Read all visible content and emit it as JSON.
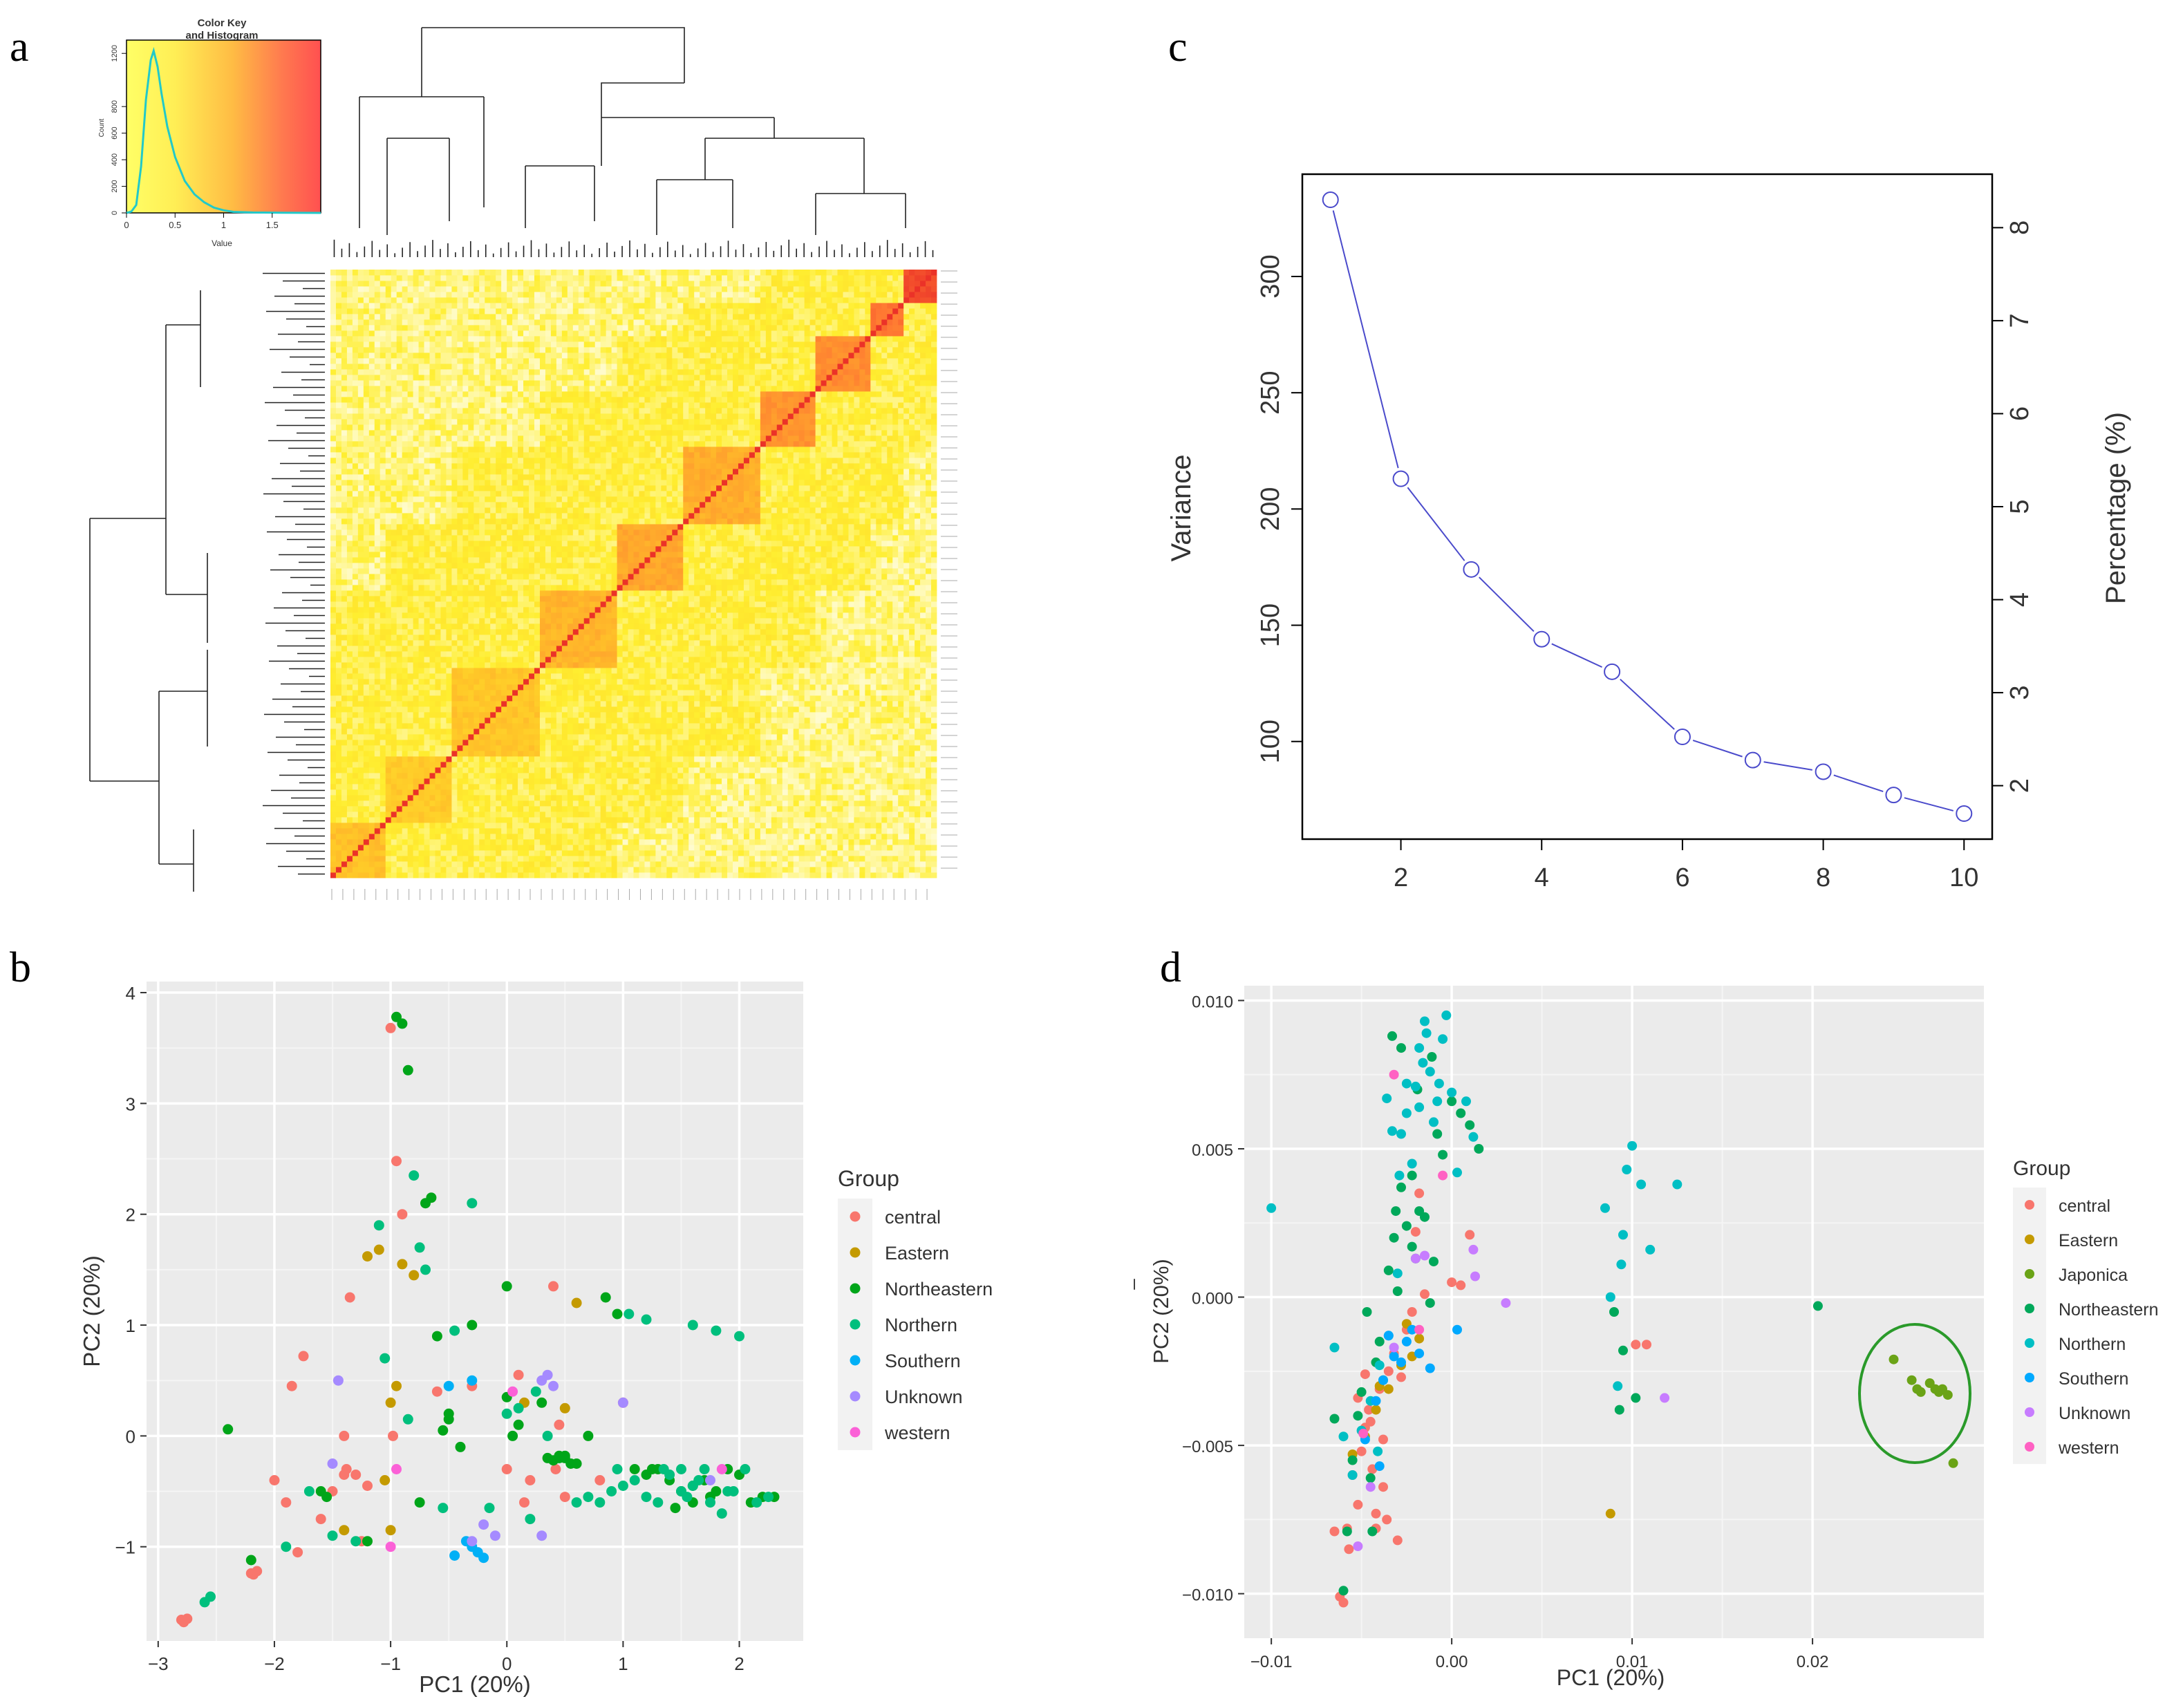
{
  "panel_labels": [
    "a",
    "b",
    "c",
    "d"
  ],
  "chart_data": [
    {
      "panel": "a",
      "type": "heatmap",
      "title": "",
      "description": "Kinship heatmap with row and column dendrograms",
      "color_scale": [
        "#fffde0",
        "#ffee30",
        "#ffb030",
        "#ff5050"
      ],
      "color_key": {
        "title": "Color Key\nand Histogram",
        "title_lines": [
          "Color Key",
          "and Histogram"
        ],
        "xlabel": "Value",
        "ylabel": "Count",
        "xticks": [
          "0",
          "0.5",
          "1",
          "1.5"
        ],
        "yticks": [
          "0",
          "200",
          "400",
          "600",
          "800",
          "1200"
        ],
        "xlim": [
          0,
          2.0
        ],
        "ylim": [
          0,
          1300
        ],
        "histogram": {
          "x": [
            0.0,
            0.05,
            0.1,
            0.15,
            0.2,
            0.25,
            0.28,
            0.32,
            0.36,
            0.42,
            0.5,
            0.6,
            0.7,
            0.8,
            0.9,
            1.0,
            1.1,
            1.3,
            1.6,
            2.0
          ],
          "y": [
            0,
            10,
            60,
            350,
            850,
            1150,
            1220,
            1100,
            900,
            650,
            420,
            240,
            140,
            80,
            40,
            20,
            8,
            3,
            1,
            0
          ]
        }
      },
      "block_values": [
        0.62,
        0.55,
        0.58,
        0.7,
        0.78,
        0.74,
        0.9,
        0.95,
        1.1,
        1.4
      ]
    },
    {
      "panel": "b",
      "type": "scatter",
      "title": "",
      "xlabel": "PC1 (20%)",
      "ylabel": "PC2 (20%)",
      "xlim": [
        -3.1,
        2.55
      ],
      "ylim": [
        -1.85,
        4.1
      ],
      "xticks": [
        -3,
        -2,
        -1,
        0,
        1,
        2
      ],
      "yticks": [
        -1,
        0,
        1,
        2,
        3,
        4
      ],
      "xtick_labels": [
        "−3",
        "−2",
        "−1",
        "0",
        "1",
        "2"
      ],
      "ytick_labels": [
        "−1",
        "0",
        "1",
        "2",
        "3",
        "4"
      ],
      "legend": {
        "title": "Group",
        "placement": "right"
      },
      "series": [
        {
          "name": "central",
          "color": "#f8766d",
          "x": [
            -2.8,
            -2.78,
            -2.75,
            -2.2,
            -2.18,
            -2.15,
            -2.0,
            -1.9,
            -1.8,
            -1.75,
            -1.6,
            -1.5,
            -1.4,
            -1.38,
            -1.35,
            -1.3,
            -1.2,
            -1.0,
            -0.95,
            -0.9,
            -0.6,
            -0.3,
            0.0,
            0.1,
            0.15,
            0.2,
            0.4,
            0.45,
            0.5,
            0.8,
            1.0,
            -1.85,
            -1.4,
            -1.25,
            0.42,
            -0.98
          ],
          "y": [
            -1.66,
            -1.68,
            -1.65,
            -1.24,
            -1.25,
            -1.22,
            -0.4,
            -0.6,
            -1.05,
            0.72,
            -0.75,
            -0.5,
            0.0,
            -0.3,
            1.25,
            -0.35,
            -0.45,
            3.68,
            2.48,
            2.0,
            0.4,
            0.45,
            -0.3,
            0.55,
            -0.6,
            -0.4,
            1.35,
            0.1,
            -0.55,
            -0.4,
            0.3,
            0.45,
            -0.35,
            -0.95,
            -0.3,
            0.0
          ]
        },
        {
          "name": "Eastern",
          "color": "#c49a00",
          "x": [
            -1.2,
            -1.1,
            -1.0,
            -0.9,
            -0.8,
            -0.95,
            -1.05,
            -1.4,
            0.5,
            0.15,
            -1.0,
            0.6
          ],
          "y": [
            1.62,
            1.68,
            0.3,
            1.55,
            1.45,
            0.45,
            -0.4,
            -0.85,
            0.25,
            0.3,
            -0.85,
            1.2
          ]
        },
        {
          "name": "Northeastern",
          "color": "#00a519",
          "x": [
            -0.95,
            -0.9,
            -0.85,
            -0.65,
            -0.7,
            -0.6,
            -0.5,
            -0.4,
            -0.3,
            0.0,
            0.1,
            0.3,
            0.45,
            0.5,
            0.6,
            0.7,
            0.85,
            0.95,
            1.1,
            1.2,
            1.3,
            1.4,
            1.5,
            1.6,
            1.7,
            1.8,
            1.9,
            2.0,
            2.1,
            2.2,
            2.3,
            -2.4,
            -2.2,
            -0.5,
            -0.55,
            0.35,
            0.4,
            0.45,
            0.5,
            0.55,
            1.25,
            -1.6,
            -1.55,
            -1.2,
            -0.75,
            0.0,
            0.05,
            1.45,
            1.6,
            1.75
          ],
          "y": [
            3.78,
            3.72,
            3.3,
            2.15,
            2.1,
            0.9,
            0.2,
            -0.1,
            1.0,
            1.35,
            0.1,
            0.3,
            -0.2,
            -0.18,
            -0.25,
            0.0,
            1.25,
            1.1,
            -0.3,
            -0.35,
            -0.3,
            -0.4,
            -0.5,
            -0.45,
            -0.4,
            -0.5,
            -0.3,
            -0.35,
            -0.6,
            -0.55,
            -0.55,
            0.06,
            -1.12,
            0.15,
            0.05,
            -0.2,
            -0.22,
            -0.18,
            -0.2,
            -0.25,
            -0.3,
            -0.5,
            -0.55,
            -0.95,
            -0.6,
            0.35,
            0.0,
            -0.65,
            -0.6,
            -0.55
          ]
        },
        {
          "name": "Northern",
          "color": "#00bf7d",
          "x": [
            -2.6,
            -2.55,
            -1.9,
            -1.7,
            -1.5,
            -1.3,
            -1.1,
            -0.8,
            -0.75,
            -0.3,
            -0.45,
            0.0,
            0.2,
            0.25,
            0.6,
            0.7,
            0.9,
            1.0,
            1.1,
            1.2,
            1.3,
            1.35,
            1.5,
            1.55,
            1.6,
            1.65,
            1.75,
            1.85,
            1.95,
            2.05,
            2.15,
            2.25,
            1.6,
            1.8,
            2.0,
            0.8,
            0.95,
            -0.85,
            -0.7,
            -1.05,
            0.1,
            0.35,
            1.4,
            1.5,
            1.7,
            1.9,
            1.05,
            1.2,
            -0.15,
            -0.55
          ],
          "y": [
            -1.5,
            -1.45,
            -1.0,
            -0.5,
            -0.9,
            -0.95,
            1.9,
            2.35,
            1.7,
            2.1,
            0.95,
            0.2,
            -0.75,
            0.4,
            -0.6,
            -0.55,
            -0.5,
            -0.45,
            -0.4,
            -0.55,
            -0.6,
            -0.3,
            -0.5,
            -0.55,
            -0.45,
            -0.4,
            -0.6,
            -0.7,
            -0.5,
            -0.3,
            -0.6,
            -0.55,
            1.0,
            0.95,
            0.9,
            -0.6,
            -0.3,
            0.15,
            1.5,
            0.7,
            0.25,
            0.0,
            -0.35,
            -0.3,
            -0.3,
            -0.5,
            1.1,
            1.05,
            -0.65,
            -0.65
          ]
        },
        {
          "name": "Southern",
          "color": "#00b0f6",
          "x": [
            -0.45,
            -0.35,
            -0.3,
            -0.25,
            -0.2,
            -0.5,
            -0.3
          ],
          "y": [
            -1.08,
            -0.95,
            -1.0,
            -1.05,
            -1.1,
            0.45,
            0.5
          ]
        },
        {
          "name": "Unknown",
          "color": "#a58aff",
          "x": [
            -1.5,
            -0.2,
            -0.1,
            0.3,
            0.35,
            0.4,
            0.3,
            1.75,
            -0.3,
            -1.45,
            1.0
          ],
          "y": [
            -0.25,
            -0.8,
            -0.9,
            0.5,
            0.55,
            0.45,
            -0.9,
            -0.4,
            -0.95,
            0.5,
            0.3
          ]
        },
        {
          "name": "western",
          "color": "#fb61d7",
          "x": [
            -1.0,
            0.05,
            1.85,
            -0.95
          ],
          "y": [
            -1.0,
            0.4,
            -0.3,
            -0.3
          ]
        }
      ]
    },
    {
      "panel": "c",
      "type": "line",
      "title": "",
      "xlabel": "",
      "ylabel": "Variance",
      "ylabel_right": "Percentage (%)",
      "x": [
        1,
        2,
        3,
        4,
        5,
        6,
        7,
        8,
        9,
        10
      ],
      "values": [
        333,
        213,
        174,
        144,
        130,
        102,
        92,
        87,
        77,
        69
      ],
      "xlim": [
        0.6,
        10.4
      ],
      "ylim": [
        58,
        344
      ],
      "xticks": [
        "2",
        "4",
        "6",
        "8",
        "10"
      ],
      "yticks": [
        "100",
        "150",
        "200",
        "250",
        "300"
      ],
      "ytick_values": [
        100,
        150,
        200,
        250,
        300
      ],
      "yticks_right": [
        "2",
        "3",
        "4",
        "5",
        "6",
        "7",
        "8"
      ],
      "ytick_right_values": [
        2,
        3,
        4,
        5,
        6,
        7,
        8
      ],
      "right_axis_scale": 40,
      "line_color": "#4a4acb"
    },
    {
      "panel": "d",
      "type": "scatter",
      "title": "",
      "xlabel": "PC1 (20%)",
      "ylabel": "PC2 (20%)",
      "ylabel_marker": "–",
      "xlim": [
        -0.0115,
        0.0295
      ],
      "ylim": [
        -0.0115,
        0.0105
      ],
      "xticks": [
        -0.01,
        0.0,
        0.01,
        0.02
      ],
      "yticks": [
        -0.01,
        -0.005,
        0.0,
        0.005,
        0.01
      ],
      "xtick_labels": [
        "−0.01",
        "0.00",
        "0.01",
        "0.02"
      ],
      "ytick_labels": [
        "−0.010",
        "−0.005",
        "0.000",
        "0.005",
        "0.010"
      ],
      "legend": {
        "title": "Group",
        "placement": "right"
      },
      "annotation": {
        "type": "ellipse",
        "around": "Japonica cluster",
        "color": "#2a9a2a"
      },
      "series": [
        {
          "name": "central",
          "color": "#f8766d",
          "x": [
            -0.0062,
            -0.006,
            -0.0058,
            -0.0057,
            -0.0055,
            -0.0052,
            -0.005,
            -0.0048,
            -0.0046,
            -0.0044,
            -0.0042,
            -0.004,
            -0.0038,
            -0.0035,
            -0.0032,
            -0.003,
            -0.0028,
            -0.0025,
            -0.0022,
            -0.002,
            -0.0018,
            -0.0015,
            0.0,
            0.0005,
            0.0102,
            0.0108,
            0.001,
            -0.0045,
            -0.0038,
            -0.0052,
            -0.0048,
            -0.0042,
            -0.0036,
            -0.0065
          ],
          "y": [
            -0.0101,
            -0.0103,
            -0.0078,
            -0.0085,
            -0.006,
            -0.007,
            -0.0052,
            -0.0044,
            -0.0038,
            -0.0058,
            -0.0078,
            -0.0031,
            -0.0064,
            -0.0025,
            -0.0019,
            -0.0082,
            -0.0027,
            -0.0011,
            -0.0005,
            0.0022,
            0.0035,
            0.0001,
            0.0005,
            0.0004,
            -0.0016,
            -0.0016,
            0.0021,
            -0.0042,
            -0.0048,
            -0.0034,
            -0.0026,
            -0.0073,
            -0.0075,
            -0.0079
          ]
        },
        {
          "name": "Eastern",
          "color": "#c49a00",
          "x": [
            -0.0055,
            -0.0048,
            -0.0042,
            -0.0035,
            -0.0028,
            -0.0022,
            -0.0018,
            0.0088,
            -0.004,
            -0.0025
          ],
          "y": [
            -0.0053,
            -0.0047,
            -0.0038,
            -0.0031,
            -0.0023,
            -0.002,
            -0.0014,
            -0.0073,
            -0.003,
            -0.0009
          ]
        },
        {
          "name": "Japonica",
          "color": "#6aa316",
          "x": [
            0.0245,
            0.0255,
            0.026,
            0.0265,
            0.027,
            0.0272,
            0.0275,
            0.0268,
            0.0278,
            0.0258
          ],
          "y": [
            -0.0021,
            -0.0028,
            -0.0032,
            -0.0029,
            -0.0032,
            -0.0031,
            -0.0033,
            -0.0031,
            -0.0056,
            -0.0031
          ]
        },
        {
          "name": "Northeastern",
          "color": "#00a85a",
          "x": [
            -0.0065,
            -0.006,
            -0.0058,
            -0.0055,
            -0.0052,
            -0.005,
            -0.0045,
            -0.0042,
            -0.004,
            -0.0038,
            -0.0035,
            -0.0032,
            -0.003,
            -0.0028,
            -0.0025,
            -0.0022,
            -0.002,
            -0.0018,
            -0.0015,
            -0.0012,
            -0.001,
            -0.0008,
            -0.0005,
            0.0,
            0.0005,
            0.001,
            0.0015,
            0.009,
            0.0093,
            0.0095,
            0.0102,
            0.0203,
            -0.0033,
            -0.0028,
            -0.0019,
            -0.0022,
            -0.0031,
            -0.0011,
            -0.0044,
            -0.0047
          ],
          "y": [
            -0.0041,
            -0.0099,
            -0.0079,
            -0.0055,
            -0.004,
            -0.0032,
            -0.0061,
            -0.0022,
            -0.0015,
            -0.0028,
            0.0009,
            0.002,
            0.0002,
            0.0037,
            0.0024,
            0.0017,
            0.0013,
            0.0029,
            0.0027,
            -0.0002,
            0.0012,
            0.0055,
            0.0048,
            0.0066,
            0.0062,
            0.0058,
            0.005,
            -0.0005,
            -0.0038,
            -0.0018,
            -0.0034,
            -0.0003,
            0.0088,
            0.0084,
            0.007,
            0.0041,
            0.0029,
            0.0081,
            -0.0079,
            -0.0005
          ]
        },
        {
          "name": "Northern",
          "color": "#00bfc4",
          "x": [
            -0.01,
            -0.0065,
            -0.006,
            -0.0055,
            -0.005,
            -0.0045,
            -0.004,
            -0.0035,
            -0.003,
            -0.0028,
            -0.0025,
            -0.0022,
            -0.002,
            -0.0018,
            -0.0015,
            -0.0012,
            -0.001,
            -0.0008,
            -0.0005,
            -0.0003,
            0.0,
            0.0003,
            0.0008,
            0.0012,
            0.0085,
            0.0088,
            0.0092,
            0.0095,
            0.01,
            0.0105,
            0.011,
            0.0125,
            -0.0033,
            -0.0018,
            -0.0014,
            -0.0025,
            -0.0036,
            -0.0041,
            -0.0029,
            -0.0007,
            -0.0016,
            0.0097,
            0.0094
          ],
          "y": [
            0.003,
            -0.0017,
            -0.0047,
            -0.006,
            -0.0045,
            -0.0035,
            -0.0023,
            -0.0013,
            0.0008,
            0.0055,
            0.0062,
            0.0045,
            0.0071,
            0.0084,
            0.0093,
            0.0076,
            0.0059,
            0.0066,
            0.0087,
            0.0095,
            0.0069,
            0.0042,
            0.0066,
            0.0054,
            0.003,
            0.0,
            -0.003,
            0.0021,
            0.0051,
            0.0038,
            0.0016,
            0.0038,
            0.0056,
            0.0064,
            0.0089,
            0.0072,
            0.0067,
            -0.0052,
            0.0041,
            0.0072,
            0.0079,
            0.0043,
            0.0011
          ]
        },
        {
          "name": "Southern",
          "color": "#00a9ff",
          "x": [
            -0.0048,
            -0.0042,
            -0.0038,
            -0.0032,
            -0.0028,
            -0.0025,
            -0.0022,
            -0.0018,
            0.0003,
            -0.0035,
            -0.004,
            -0.0012
          ],
          "y": [
            -0.0048,
            -0.0035,
            -0.0028,
            -0.002,
            -0.0022,
            -0.0015,
            -0.0011,
            -0.0019,
            -0.0011,
            -0.0013,
            -0.0057,
            -0.0024
          ]
        },
        {
          "name": "Unknown",
          "color": "#c77cff",
          "x": [
            -0.0032,
            -0.002,
            -0.0015,
            0.0013,
            0.0012,
            0.003,
            0.0118,
            -0.0052,
            -0.0045
          ],
          "y": [
            -0.0017,
            0.0013,
            0.0014,
            0.0007,
            0.0016,
            -0.0002,
            -0.0034,
            -0.0084,
            -0.0064
          ]
        },
        {
          "name": "western",
          "color": "#ff61c3",
          "x": [
            -0.0032,
            -0.0005,
            -0.0018,
            -0.0049
          ],
          "y": [
            0.0075,
            0.0041,
            -0.0011,
            -0.0046
          ]
        }
      ]
    }
  ]
}
